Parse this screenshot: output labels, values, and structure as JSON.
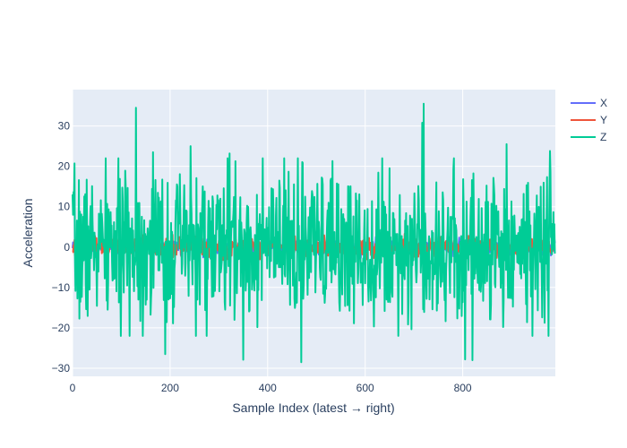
{
  "chart_data": {
    "type": "line",
    "title": "",
    "xlabel": "Sample Index (latest → right)",
    "ylabel": "Acceleration",
    "xlim": [
      0,
      990
    ],
    "ylim": [
      -32,
      39
    ],
    "x_ticks": [
      0,
      200,
      400,
      600,
      800
    ],
    "y_ticks": [
      -30,
      -20,
      -10,
      0,
      10,
      20,
      30
    ],
    "x_tick_labels": [
      "0",
      "200",
      "400",
      "600",
      "800"
    ],
    "y_tick_labels": [
      "−30",
      "−20",
      "−10",
      "0",
      "10",
      "20",
      "30"
    ],
    "grid": true,
    "legend_position": "top-right",
    "n_points": 990,
    "series": [
      {
        "name": "X",
        "color": "#636efa",
        "amplitude": 1.2,
        "seed": 11
      },
      {
        "name": "Y",
        "color": "#ef553b",
        "amplitude": 1.6,
        "seed": 23
      },
      {
        "name": "Z",
        "color": "#00cc96",
        "amplitude": 12,
        "seed": 7,
        "peaks": [
          [
            130,
            34.5
          ],
          [
            717,
            30.8
          ],
          [
            720,
            35.5
          ],
          [
            165,
            23.5
          ],
          [
            242,
            25.0
          ],
          [
            322,
            23.2
          ],
          [
            890,
            25.5
          ],
          [
            979,
            23.8
          ],
          [
            469,
            -28.5
          ],
          [
            350,
            -27.9
          ],
          [
            805,
            -27.8
          ],
          [
            820,
            -28.0
          ],
          [
            190,
            -26.5
          ]
        ]
      }
    ]
  }
}
